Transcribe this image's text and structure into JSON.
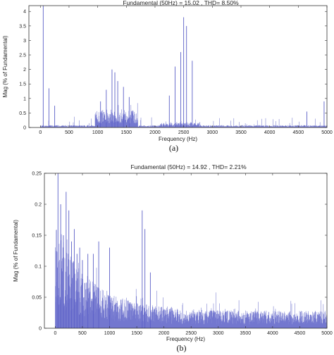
{
  "chart_data": [
    {
      "type": "bar",
      "panel_label": "(a)",
      "title": "Fundamental (50Hz) = 15.02 , THD= 8.50%",
      "xlabel": "Frequency (Hz)",
      "ylabel": "Mag (% of Fundamental)",
      "xlim": [
        -200,
        5000
      ],
      "ylim": [
        0,
        4.2
      ],
      "x_ticks": [
        0,
        500,
        1000,
        1500,
        2000,
        2500,
        3000,
        3500,
        4000,
        4500,
        5000
      ],
      "y_ticks": [
        0,
        0.5,
        1,
        1.5,
        2,
        2.5,
        3,
        3.5,
        4
      ],
      "grid": false,
      "color": "#5b5fc7",
      "series": [
        {
          "x": [
            50,
            150,
            250,
            1050,
            1150,
            1250,
            1300,
            1350,
            1450,
            1550,
            2250,
            2350,
            2450,
            2500,
            2550,
            2650,
            4650,
            4950
          ],
          "values": [
            4.2,
            1.35,
            0.75,
            0.9,
            1.3,
            2.0,
            1.9,
            1.6,
            1.4,
            1.05,
            1.1,
            2.1,
            2.6,
            3.8,
            3.5,
            2.3,
            0.55,
            0.9
          ]
        }
      ]
    },
    {
      "type": "bar",
      "panel_label": "(b)",
      "title": "Fundamental (50Hz) = 14.92 , THD= 2.21%",
      "xlabel": "Frequency (Hz)",
      "ylabel": "Mag (% of Fundamental)",
      "xlim": [
        -200,
        5000
      ],
      "ylim": [
        0,
        0.25
      ],
      "x_ticks": [
        0,
        500,
        1000,
        1500,
        2000,
        2500,
        3000,
        3500,
        4000,
        4500,
        5000
      ],
      "y_ticks": [
        0,
        0.05,
        0.1,
        0.15,
        0.2,
        0.25
      ],
      "grid": false,
      "color": "#5b5fc7",
      "series": [
        {
          "x": [
            50,
            100,
            150,
            200,
            250,
            300,
            350,
            400,
            450,
            500,
            600,
            700,
            800,
            1000,
            1600,
            1650,
            1750
          ],
          "values": [
            0.25,
            0.2,
            0.15,
            0.22,
            0.19,
            0.14,
            0.16,
            0.12,
            0.13,
            0.11,
            0.12,
            0.12,
            0.14,
            0.13,
            0.19,
            0.16,
            0.09
          ]
        }
      ]
    }
  ]
}
